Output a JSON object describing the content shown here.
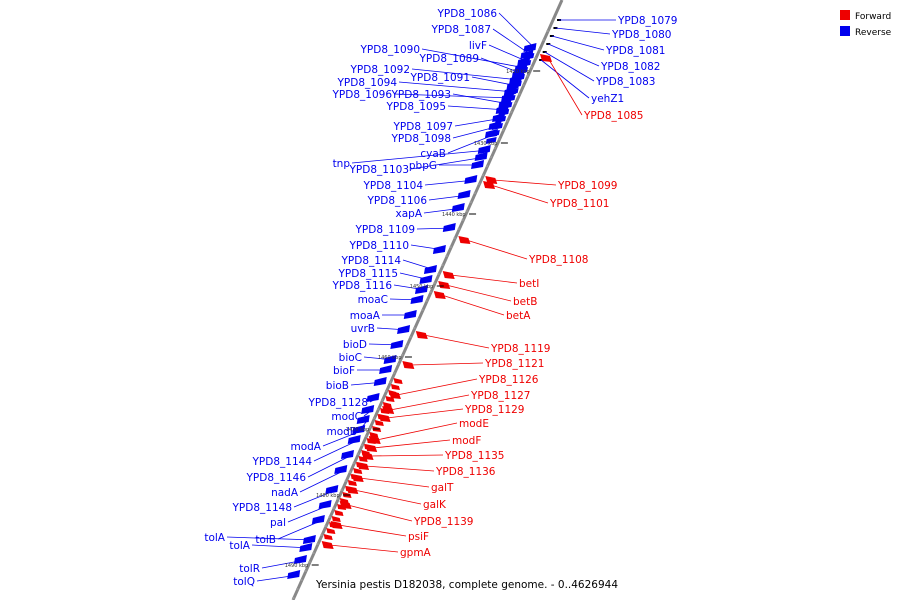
{
  "caption": "Yersinia pestis D182038, complete genome. - 0..4626944",
  "colors": {
    "forward": "#ee0000",
    "reverse": "#0000ee",
    "backbone": "#888888"
  },
  "legend": [
    {
      "label": "Forward",
      "strand": "forward"
    },
    {
      "label": "Reverse",
      "strand": "reverse"
    }
  ],
  "ticks": [
    "1420 kbp",
    "1430 kbp",
    "1440 kbp",
    "1450 kbp",
    "1460 kbp",
    "1470 kbp",
    "1480 kbp",
    "1490 kbp"
  ],
  "reverse_genes": [
    "YPD8_1086",
    "YPD8_1087",
    "livF",
    "YPD8_1090",
    "YPD8_1089",
    "YPD8_1092",
    "YPD8_1091",
    "YPD8_1094",
    "YPD8_1096",
    "YPD8_1093",
    "YPD8_1095",
    "YPD8_1097",
    "YPD8_1098",
    "cyaB",
    "tnp",
    "YPD8_1103",
    "pbpG",
    "YPD8_1104",
    "YPD8_1106",
    "xapA",
    "YPD8_1109",
    "YPD8_1110",
    "YPD8_1114",
    "YPD8_1115",
    "YPD8_1116",
    "moaC",
    "moaA",
    "uvrB",
    "bioD",
    "bioC",
    "bioF",
    "bioB",
    "YPD8_1128",
    "modC",
    "modB",
    "modA",
    "YPD8_1144",
    "YPD8_1146",
    "nadA",
    "YPD8_1148",
    "pal",
    "tolB",
    "tolA",
    "tolA",
    "tolR",
    "tolQ"
  ],
  "reverse_right_genes": [
    "YPD8_1079",
    "YPD8_1080",
    "YPD8_1081",
    "YPD8_1082",
    "YPD8_1083",
    "yehZ1"
  ],
  "forward_genes": [
    "YPD8_1085",
    "YPD8_1099",
    "YPD8_1101",
    "YPD8_1108",
    "betI",
    "betB",
    "betA",
    "YPD8_1119",
    "YPD8_1121",
    "YPD8_1126",
    "YPD8_1127",
    "YPD8_1129",
    "modE",
    "modF",
    "YPD8_1135",
    "YPD8_1136",
    "galT",
    "galK",
    "YPD8_1139",
    "psiF",
    "gpmA"
  ]
}
